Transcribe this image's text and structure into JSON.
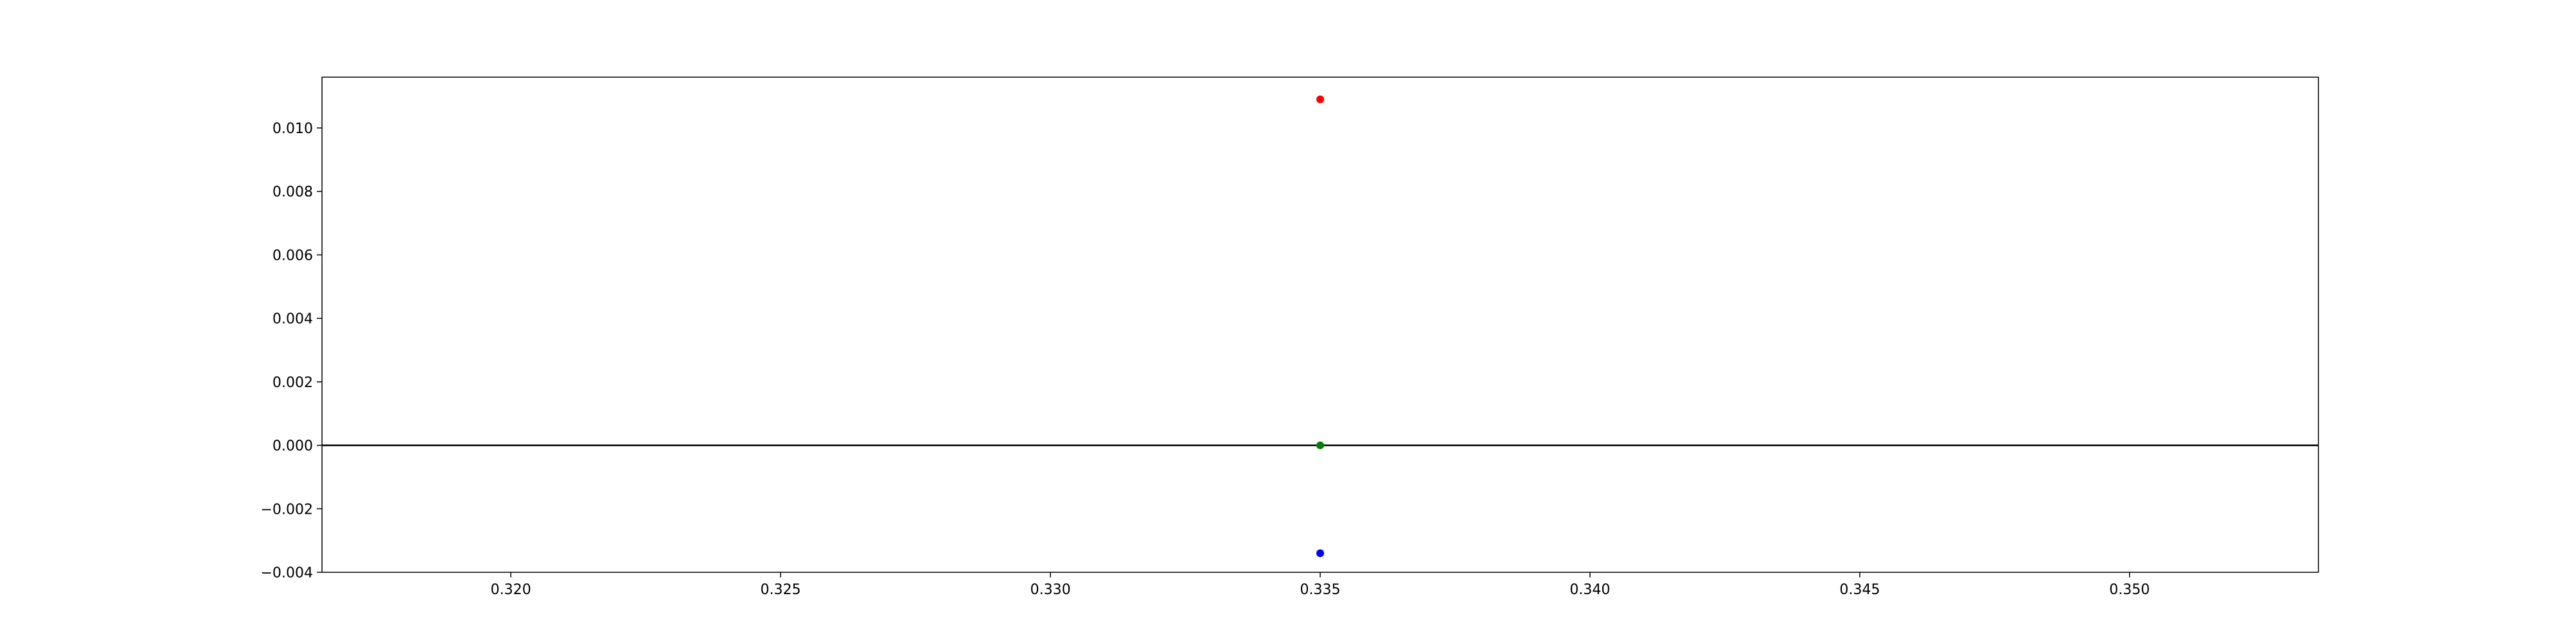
{
  "chart_data": {
    "type": "scatter",
    "title": "",
    "xlabel": "",
    "ylabel": "",
    "xlim": [
      0.3165,
      0.3535
    ],
    "ylim": [
      -0.004,
      0.0116
    ],
    "x_ticks": [
      0.32,
      0.325,
      0.33,
      0.335,
      0.34,
      0.345,
      0.35
    ],
    "x_tick_labels": [
      "0.320",
      "0.325",
      "0.330",
      "0.335",
      "0.340",
      "0.345",
      "0.350"
    ],
    "y_ticks": [
      -0.004,
      -0.002,
      0.0,
      0.002,
      0.004,
      0.006,
      0.008,
      0.01
    ],
    "y_tick_labels": [
      "−0.004",
      "−0.002",
      "0.000",
      "0.002",
      "0.004",
      "0.006",
      "0.008",
      "0.010"
    ],
    "grid": false,
    "legend": "none",
    "reference_line": {
      "y": 0,
      "color": "#000000"
    },
    "points": [
      {
        "x": 0.335,
        "y": 0.0109,
        "color": "#ff0000"
      },
      {
        "x": 0.335,
        "y": 0.0,
        "color": "#008000"
      },
      {
        "x": 0.335,
        "y": -0.0034,
        "color": "#0000ff"
      }
    ]
  }
}
